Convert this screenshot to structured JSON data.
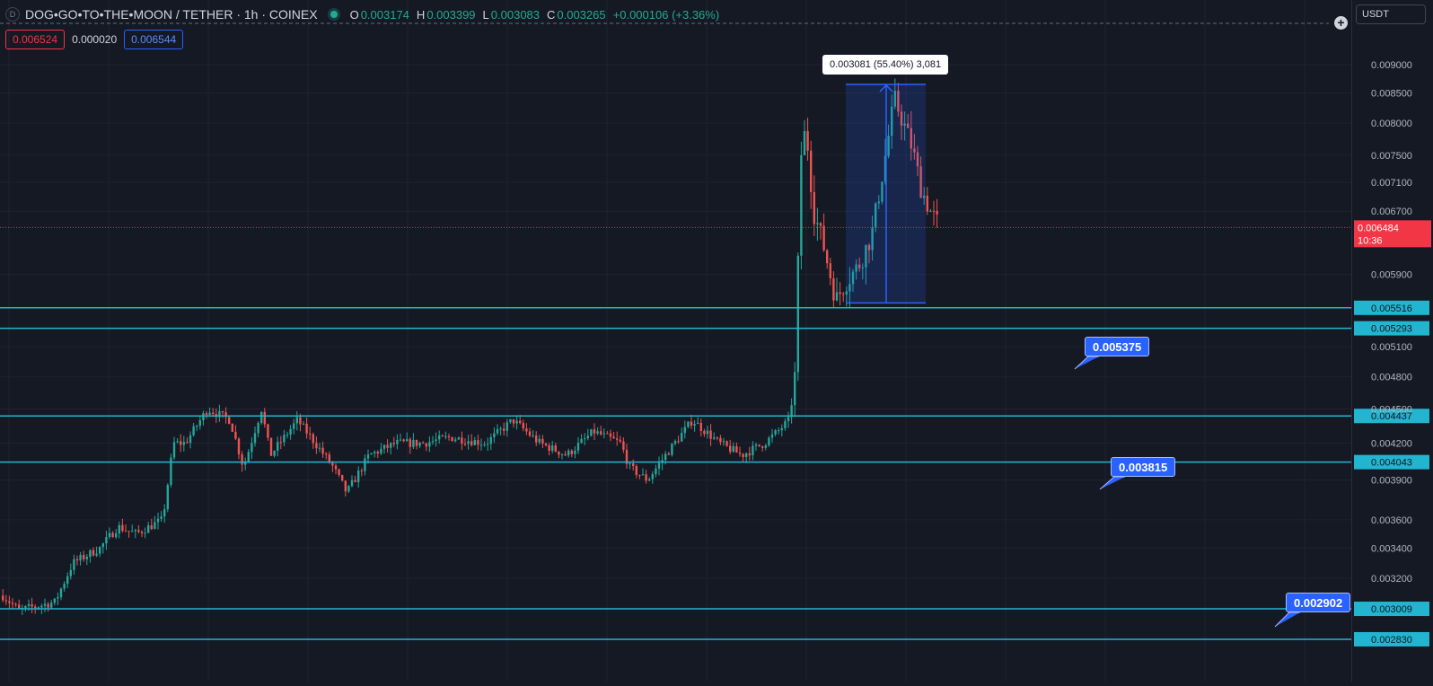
{
  "symbol": {
    "title": "DOG•GO•TO•THE•MOON / TETHER · 1h · COINEX",
    "badge": "D",
    "ohlc": [
      {
        "k": "O",
        "v": "0.003174"
      },
      {
        "k": "H",
        "v": "0.003399"
      },
      {
        "k": "L",
        "v": "0.003083"
      },
      {
        "k": "C",
        "v": "0.003265"
      }
    ],
    "change": "+0.000106 (+3.36%)"
  },
  "trade": {
    "sell": "0.006524",
    "spread": "0.000020",
    "buy": "0.006544"
  },
  "currency_button": "USDT",
  "price_axis": {
    "ticks": [
      "0.009000",
      "0.008500",
      "0.008000",
      "0.007500",
      "0.007100",
      "0.006700",
      "0.005900",
      "0.005100",
      "0.004800",
      "0.004500",
      "0.004200",
      "0.003900",
      "0.003600",
      "0.003400",
      "0.003200"
    ],
    "last_price": {
      "value": "0.006484",
      "countdown": "10:36",
      "color": "#f23645"
    }
  },
  "levels": [
    "0.005516",
    "0.005293",
    "0.004437",
    "0.004043",
    "0.003009",
    "0.002830"
  ],
  "callouts": [
    "0.005375",
    "0.003815",
    "0.002902"
  ],
  "measure_tooltip": "0.003081 (55.40%) 3,081",
  "colors": {
    "up": "#26a69a",
    "down": "#ef5350",
    "level_line": "#22b5d0",
    "accent": "#2962ff",
    "background": "#151924"
  },
  "icons": {
    "plus": "plus-circle-icon"
  }
}
